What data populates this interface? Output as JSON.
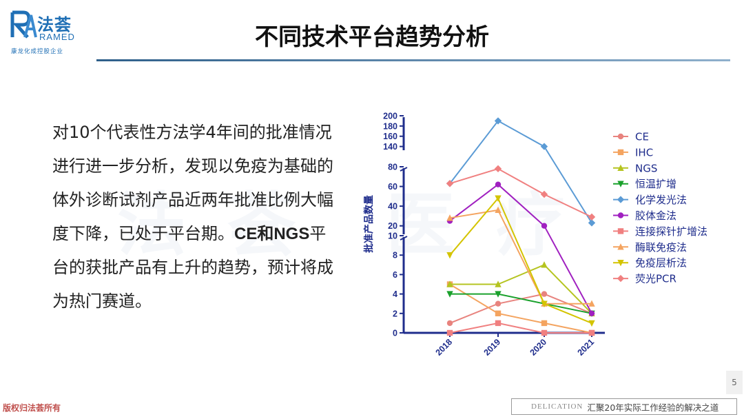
{
  "logo": {
    "cn": "法荟",
    "en": "RAMED",
    "sub": "康龙化成控股企业"
  },
  "title": "不同技术平台趋势分析",
  "body": {
    "p1": "对10个代表性方法学4年间的批准情况进行进一步分析，发现以免疫为基础的体外诊断试剂产品近两年批准比例大幅度下降，已处于平台期。",
    "ce": "CE",
    "and": "和",
    "ngs": "NGS",
    "p2": "平台的获批产品有上升的趋势，预计将成为热门赛道。"
  },
  "watermark": {
    "chars": [
      "法",
      "荟",
      "医",
      "疗"
    ]
  },
  "page_number": "5",
  "footer": {
    "copyright": "版权归法荟所有",
    "brand": "DELICATION",
    "slogan": "汇聚20年实际工作经验的解决之道"
  },
  "chart_data": {
    "type": "line",
    "ylabel": "批准产品数量",
    "x": [
      "2018",
      "2019",
      "2020",
      "2021"
    ],
    "y_segments": [
      {
        "range": [
          0,
          10
        ],
        "ticks": [
          0,
          2,
          4,
          6,
          8,
          10
        ]
      },
      {
        "range": [
          10,
          80
        ],
        "ticks": [
          20,
          40,
          60,
          80
        ]
      },
      {
        "range": [
          130,
          200
        ],
        "ticks": [
          140,
          160,
          180,
          200
        ]
      }
    ],
    "legend_position": "right",
    "series": [
      {
        "name": "CE",
        "color": "#e8837e",
        "marker": "circle",
        "values": [
          1,
          3,
          4,
          2
        ]
      },
      {
        "name": "IHC",
        "color": "#f4a460",
        "marker": "square",
        "values": [
          5,
          2,
          1,
          0
        ]
      },
      {
        "name": "NGS",
        "color": "#b5c420",
        "marker": "triangle-up",
        "values": [
          5,
          5,
          7,
          2
        ]
      },
      {
        "name": "恒温扩增",
        "color": "#1aa12c",
        "marker": "triangle-down",
        "values": [
          4,
          4,
          3,
          2
        ]
      },
      {
        "name": "化学发光法",
        "color": "#5b9bd5",
        "marker": "diamond",
        "values": [
          63,
          190,
          140,
          23
        ]
      },
      {
        "name": "胶体金法",
        "color": "#a020c0",
        "marker": "circle",
        "values": [
          25,
          62,
          20,
          2
        ]
      },
      {
        "name": "连接探针扩增法",
        "color": "#f08080",
        "marker": "square",
        "values": [
          0,
          1,
          0,
          0
        ]
      },
      {
        "name": "酶联免疫法",
        "color": "#f4a460",
        "marker": "triangle-up",
        "values": [
          28,
          36,
          3,
          3
        ]
      },
      {
        "name": "免疫层析法",
        "color": "#d4c400",
        "marker": "triangle-down",
        "values": [
          8,
          48,
          3,
          1
        ]
      },
      {
        "name": "荧光PCR",
        "color": "#f08080",
        "marker": "diamond",
        "values": [
          63,
          78,
          52,
          29
        ]
      }
    ]
  }
}
